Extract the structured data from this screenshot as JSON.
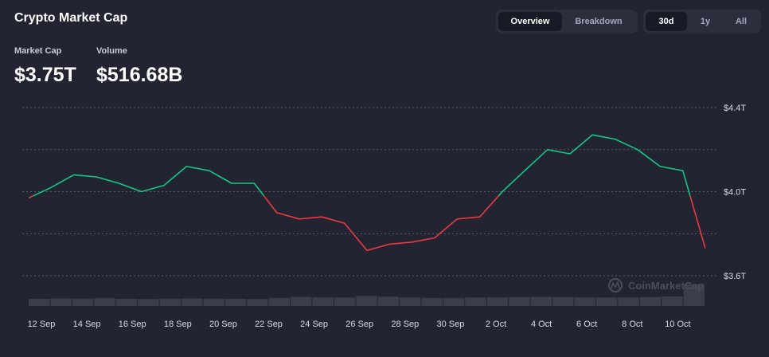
{
  "header": {
    "title": "Crypto Market Cap"
  },
  "stats": {
    "market_cap_label": "Market Cap",
    "market_cap_value": "$3.75T",
    "volume_label": "Volume",
    "volume_value": "$516.68B"
  },
  "view_tabs": {
    "overview": "Overview",
    "breakdown": "Breakdown",
    "active": "Overview"
  },
  "range_tabs": {
    "d30": "30d",
    "y1": "1y",
    "all": "All",
    "active": "30d"
  },
  "watermark": "CoinMarketCap",
  "colors": {
    "up": "#16c784",
    "down": "#ea3943",
    "background": "#222531",
    "volume": "#3a3e4b"
  },
  "chart_data": {
    "type": "line",
    "title": "Crypto Market Cap",
    "y_unit": "T",
    "ylim": [
      3.6,
      4.4
    ],
    "y_ticks": [
      3.6,
      4.0,
      4.4
    ],
    "y_tick_labels": [
      "$3.6T",
      "$4.0T",
      "$4.4T"
    ],
    "x_tick_labels": [
      "12 Sep",
      "14 Sep",
      "16 Sep",
      "18 Sep",
      "20 Sep",
      "22 Sep",
      "24 Sep",
      "26 Sep",
      "28 Sep",
      "30 Sep",
      "2 Oct",
      "4 Oct",
      "6 Oct",
      "8 Oct",
      "10 Oct"
    ],
    "baseline": 3.98,
    "grid": true,
    "x": [
      "11 Sep",
      "12 Sep",
      "13 Sep",
      "14 Sep",
      "15 Sep",
      "16 Sep",
      "17 Sep",
      "18 Sep",
      "19 Sep",
      "20 Sep",
      "21 Sep",
      "22 Sep",
      "23 Sep",
      "24 Sep",
      "25 Sep",
      "26 Sep",
      "27 Sep",
      "28 Sep",
      "29 Sep",
      "30 Sep",
      "1 Oct",
      "2 Oct",
      "3 Oct",
      "4 Oct",
      "5 Oct",
      "6 Oct",
      "7 Oct",
      "8 Oct",
      "9 Oct",
      "10 Oct",
      "11 Oct"
    ],
    "series": [
      {
        "values": [
          3.97,
          4.02,
          4.08,
          4.07,
          4.04,
          4.0,
          4.03,
          4.12,
          4.1,
          4.04,
          4.04,
          3.9,
          3.87,
          3.88,
          3.85,
          3.72,
          3.75,
          3.76,
          3.78,
          3.87,
          3.88,
          4.0,
          4.1,
          4.2,
          4.18,
          4.27,
          4.25,
          4.2,
          4.12,
          4.1,
          3.73
        ]
      }
    ],
    "volume_series": [
      0.3,
      0.32,
      0.31,
      0.33,
      0.3,
      0.29,
      0.31,
      0.32,
      0.31,
      0.3,
      0.29,
      0.34,
      0.38,
      0.36,
      0.35,
      0.42,
      0.39,
      0.36,
      0.34,
      0.33,
      0.35,
      0.36,
      0.37,
      0.38,
      0.37,
      0.36,
      0.35,
      0.36,
      0.37,
      0.4,
      0.9
    ]
  }
}
